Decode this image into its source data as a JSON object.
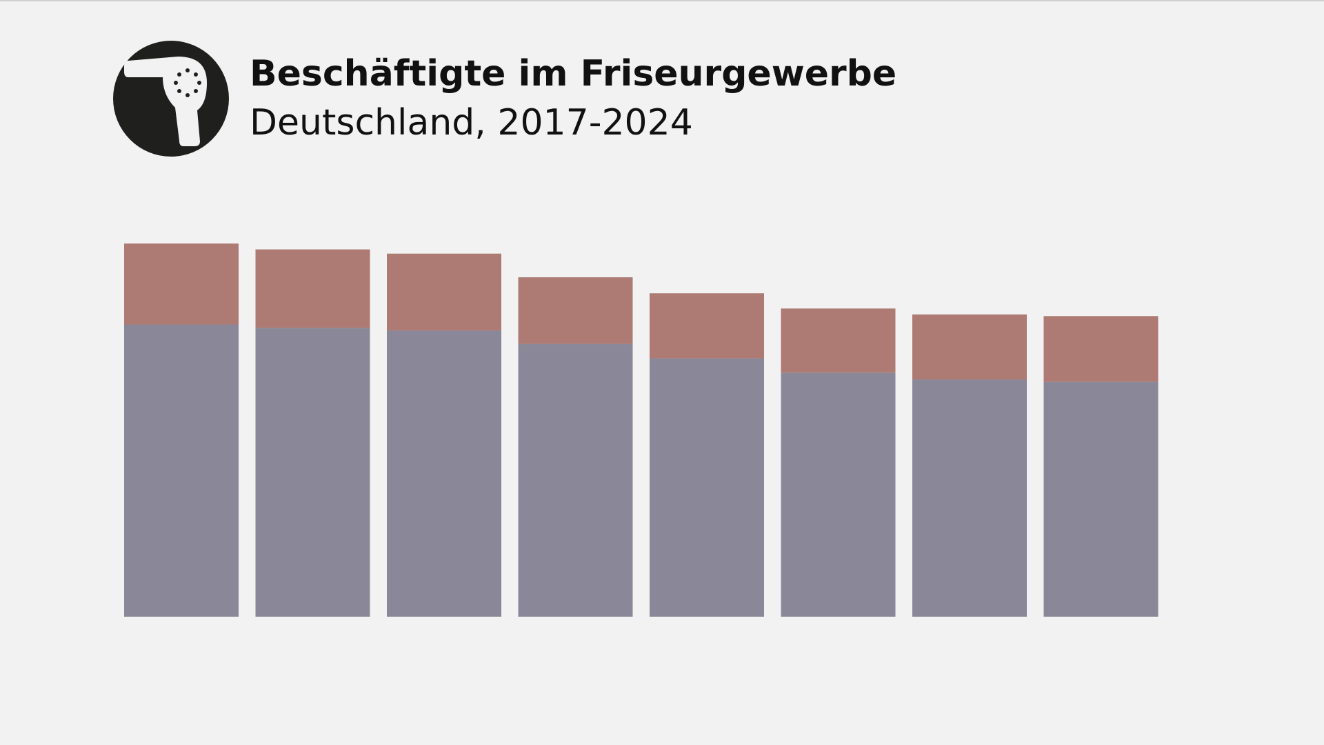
{
  "chart_data": {
    "type": "stacked-bar",
    "title": "Beschäftigte im Friseurgewerbe",
    "subtitle": "Deutschland, 2017-2024",
    "categories": [
      null,
      null,
      null,
      null,
      null,
      null,
      null,
      null
    ],
    "series": [
      {
        "color": "#8a8898",
        "values": [
          346,
          342,
          339,
          323,
          306,
          289,
          281,
          278
        ]
      },
      {
        "color": "#ad7a74",
        "values": [
          96,
          93,
          91,
          79,
          77,
          76,
          77,
          78
        ]
      }
    ]
  }
}
